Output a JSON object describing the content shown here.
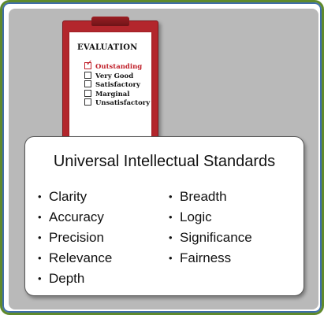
{
  "clipboard": {
    "heading": "EVALUATION",
    "items": [
      {
        "label": "Outstanding",
        "checked": true
      },
      {
        "label": "Very Good",
        "checked": false
      },
      {
        "label": "Satisfactory",
        "checked": false
      },
      {
        "label": "Marginal",
        "checked": false
      },
      {
        "label": "Unsatisfactory",
        "checked": false
      }
    ],
    "check_mark": "✓"
  },
  "card": {
    "title": "Universal Intellectual Standards",
    "bullet": "•",
    "left_column": [
      "Clarity",
      "Accuracy",
      "Precision",
      "Relevance",
      "Depth"
    ],
    "right_column": [
      "Breadth",
      "Logic",
      "Significance",
      "Fairness"
    ]
  },
  "colors": {
    "frame_border": "#5f8a2c",
    "frame_inner": "#3f6ea8",
    "panel": "#b9b9b9",
    "clipboard": "#b3262c",
    "checked_text": "#c0202a"
  }
}
